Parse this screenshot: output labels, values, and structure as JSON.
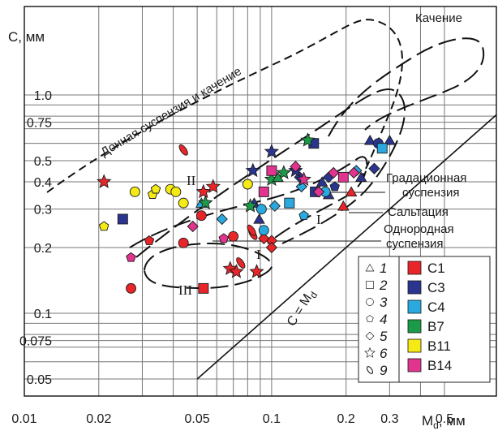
{
  "chart_data": {
    "type": "scatter",
    "title": "",
    "xlabel": "M",
    "xlabel_sub": "d",
    "xlabel_unit": ", мм",
    "ylabel": "C, мм",
    "x_scale": "log",
    "y_scale": "log",
    "xlim": [
      0.01,
      0.5
    ],
    "ylim": [
      0.046,
      3.0
    ],
    "grid": true,
    "legend_position": "bottom-right",
    "x_ticks": [
      {
        "value": 0.01,
        "label": "0.01"
      },
      {
        "value": 0.02,
        "label": "0.02"
      },
      {
        "value": 0.03,
        "label": ""
      },
      {
        "value": 0.04,
        "label": ""
      },
      {
        "value": 0.05,
        "label": "0.05"
      },
      {
        "value": 0.06,
        "label": ""
      },
      {
        "value": 0.07,
        "label": ""
      },
      {
        "value": 0.08,
        "label": ""
      },
      {
        "value": 0.09,
        "label": ""
      },
      {
        "value": 0.1,
        "label": "0.1"
      },
      {
        "value": 0.2,
        "label": "0.2"
      },
      {
        "value": 0.3,
        "label": "0.3"
      },
      {
        "value": 0.4,
        "label": ""
      },
      {
        "value": 0.5,
        "label": "0.5"
      }
    ],
    "y_ticks": [
      {
        "value": 0.05,
        "label": "0.05"
      },
      {
        "value": 0.075,
        "label": "0.075"
      },
      {
        "value": 0.1,
        "label": "0.1"
      },
      {
        "value": 0.2,
        "label": "0.2"
      },
      {
        "value": 0.3,
        "label": "0.3"
      },
      {
        "value": 0.4,
        "label": "0.4"
      },
      {
        "value": 0.5,
        "label": "0.5"
      },
      {
        "value": 0.75,
        "label": "0.75"
      },
      {
        "value": 1.0,
        "label": "1.0"
      }
    ],
    "y_extra_grid": [
      0.06,
      0.07,
      0.08,
      0.09,
      0.6,
      0.7,
      0.8,
      0.9
    ],
    "colors": {
      "C1": "#e8262a",
      "C3": "#2b3590",
      "C4": "#29a9df",
      "B7": "#1b9a48",
      "B11": "#f5ea14",
      "B14": "#e0348f"
    },
    "shape_legend": [
      {
        "shape": "triangle",
        "label": "1"
      },
      {
        "shape": "square",
        "label": "2"
      },
      {
        "shape": "circle",
        "label": "3"
      },
      {
        "shape": "pentagon",
        "label": "4"
      },
      {
        "shape": "diamond",
        "label": "5"
      },
      {
        "shape": "star",
        "label": "6"
      },
      {
        "shape": "ellipse",
        "label": "9"
      }
    ],
    "series": [
      {
        "name": "C1",
        "points": [
          {
            "x": 0.053,
            "y": 0.13,
            "shape": "square"
          },
          {
            "x": 0.027,
            "y": 0.13,
            "shape": "circle"
          },
          {
            "x": 0.021,
            "y": 0.4,
            "shape": "star"
          },
          {
            "x": 0.053,
            "y": 0.36,
            "shape": "star"
          },
          {
            "x": 0.058,
            "y": 0.38,
            "shape": "star"
          },
          {
            "x": 0.068,
            "y": 0.16,
            "shape": "star"
          },
          {
            "x": 0.072,
            "y": 0.155,
            "shape": "star"
          },
          {
            "x": 0.087,
            "y": 0.155,
            "shape": "star"
          },
          {
            "x": 0.044,
            "y": 0.56,
            "shape": "ellipse"
          },
          {
            "x": 0.032,
            "y": 0.215,
            "shape": "pentagon"
          },
          {
            "x": 0.044,
            "y": 0.21,
            "shape": "circle"
          },
          {
            "x": 0.07,
            "y": 0.225,
            "shape": "circle"
          },
          {
            "x": 0.084,
            "y": 0.23,
            "shape": "ellipse"
          },
          {
            "x": 0.083,
            "y": 0.24,
            "shape": "ellipse"
          },
          {
            "x": 0.1,
            "y": 0.215,
            "shape": "diamond"
          },
          {
            "x": 0.1,
            "y": 0.2,
            "shape": "diamond"
          },
          {
            "x": 0.093,
            "y": 0.22,
            "shape": "diamond"
          },
          {
            "x": 0.075,
            "y": 0.17,
            "shape": "ellipse"
          },
          {
            "x": 0.195,
            "y": 0.31,
            "shape": "triangle"
          },
          {
            "x": 0.21,
            "y": 0.36,
            "shape": "triangle"
          },
          {
            "x": 0.052,
            "y": 0.28,
            "shape": "circle"
          }
        ]
      },
      {
        "name": "C3",
        "points": [
          {
            "x": 0.025,
            "y": 0.27,
            "shape": "square"
          },
          {
            "x": 0.084,
            "y": 0.45,
            "shape": "star"
          },
          {
            "x": 0.1,
            "y": 0.55,
            "shape": "star"
          },
          {
            "x": 0.089,
            "y": 0.27,
            "shape": "triangle"
          },
          {
            "x": 0.085,
            "y": 0.32,
            "shape": "triangle"
          },
          {
            "x": 0.13,
            "y": 0.42,
            "shape": "diamond"
          },
          {
            "x": 0.125,
            "y": 0.45,
            "shape": "star"
          },
          {
            "x": 0.148,
            "y": 0.6,
            "shape": "square"
          },
          {
            "x": 0.16,
            "y": 0.4,
            "shape": "triangle"
          },
          {
            "x": 0.17,
            "y": 0.35,
            "shape": "triangle"
          },
          {
            "x": 0.18,
            "y": 0.38,
            "shape": "pentagon"
          },
          {
            "x": 0.15,
            "y": 0.36,
            "shape": "square"
          },
          {
            "x": 0.17,
            "y": 0.42,
            "shape": "diamond"
          },
          {
            "x": 0.25,
            "y": 0.62,
            "shape": "triangle"
          },
          {
            "x": 0.27,
            "y": 0.6,
            "shape": "circle"
          },
          {
            "x": 0.3,
            "y": 0.62,
            "shape": "triangle"
          },
          {
            "x": 0.26,
            "y": 0.46,
            "shape": "diamond"
          },
          {
            "x": 0.23,
            "y": 0.42,
            "shape": "triangle"
          }
        ]
      },
      {
        "name": "C4",
        "points": [
          {
            "x": 0.052,
            "y": 0.32,
            "shape": "triangle"
          },
          {
            "x": 0.063,
            "y": 0.27,
            "shape": "diamond"
          },
          {
            "x": 0.091,
            "y": 0.3,
            "shape": "circle"
          },
          {
            "x": 0.093,
            "y": 0.24,
            "shape": "circle"
          },
          {
            "x": 0.103,
            "y": 0.31,
            "shape": "diamond"
          },
          {
            "x": 0.135,
            "y": 0.28,
            "shape": "pentagon"
          },
          {
            "x": 0.165,
            "y": 0.36,
            "shape": "circle"
          },
          {
            "x": 0.22,
            "y": 0.45,
            "shape": "diamond"
          },
          {
            "x": 0.28,
            "y": 0.57,
            "shape": "square"
          },
          {
            "x": 0.132,
            "y": 0.38,
            "shape": "diamond"
          },
          {
            "x": 0.118,
            "y": 0.32,
            "shape": "square"
          }
        ]
      },
      {
        "name": "B7",
        "points": [
          {
            "x": 0.054,
            "y": 0.32,
            "shape": "star"
          },
          {
            "x": 0.082,
            "y": 0.31,
            "shape": "star"
          },
          {
            "x": 0.1,
            "y": 0.41,
            "shape": "star"
          },
          {
            "x": 0.112,
            "y": 0.44,
            "shape": "star"
          },
          {
            "x": 0.106,
            "y": 0.42,
            "shape": "triangle"
          },
          {
            "x": 0.14,
            "y": 0.62,
            "shape": "star"
          }
        ]
      },
      {
        "name": "B11",
        "points": [
          {
            "x": 0.021,
            "y": 0.25,
            "shape": "pentagon"
          },
          {
            "x": 0.028,
            "y": 0.36,
            "shape": "circle"
          },
          {
            "x": 0.033,
            "y": 0.35,
            "shape": "pentagon"
          },
          {
            "x": 0.034,
            "y": 0.37,
            "shape": "pentagon"
          },
          {
            "x": 0.039,
            "y": 0.37,
            "shape": "circle"
          },
          {
            "x": 0.041,
            "y": 0.36,
            "shape": "circle"
          },
          {
            "x": 0.044,
            "y": 0.32,
            "shape": "circle"
          },
          {
            "x": 0.08,
            "y": 0.39,
            "shape": "circle"
          }
        ]
      },
      {
        "name": "B14",
        "points": [
          {
            "x": 0.027,
            "y": 0.18,
            "shape": "pentagon"
          },
          {
            "x": 0.048,
            "y": 0.25,
            "shape": "diamond"
          },
          {
            "x": 0.064,
            "y": 0.22,
            "shape": "pentagon"
          },
          {
            "x": 0.093,
            "y": 0.36,
            "shape": "square"
          },
          {
            "x": 0.1,
            "y": 0.45,
            "shape": "square"
          },
          {
            "x": 0.125,
            "y": 0.47,
            "shape": "diamond"
          },
          {
            "x": 0.135,
            "y": 0.41,
            "shape": "star"
          },
          {
            "x": 0.155,
            "y": 0.36,
            "shape": "diamond"
          },
          {
            "x": 0.178,
            "y": 0.44,
            "shape": "diamond"
          },
          {
            "x": 0.195,
            "y": 0.42,
            "shape": "square"
          },
          {
            "x": 0.215,
            "y": 0.44,
            "shape": "diamond"
          }
        ]
      }
    ],
    "annotations": {
      "bottom_suspension": "Донная суспензия и качение",
      "rolling": "Качение",
      "graded_suspension_1": "Градационная",
      "graded_suspension_2": "суспензия",
      "saltation": "Сальтация",
      "uniform_suspension_1": "Однородная",
      "uniform_suspension_2": "суспензия",
      "equality_line": "C = M",
      "equality_line_sub": "d",
      "region_1": "I",
      "region_1b": "I",
      "region_2": "II",
      "region_3": "III"
    }
  }
}
